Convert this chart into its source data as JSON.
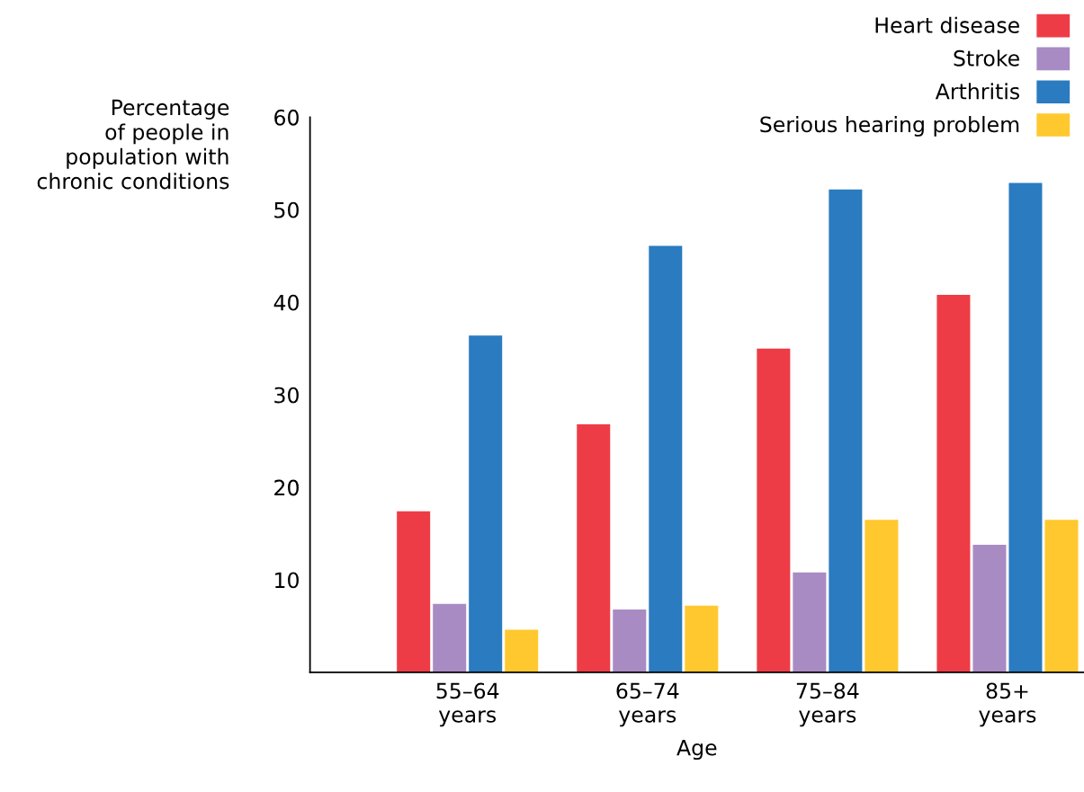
{
  "chart_data": {
    "type": "bar",
    "ylabel": "Percentage\nof people in\npopulation with\nchronic conditions",
    "xlabel": "Age",
    "categories": [
      "55–64\nyears",
      "65–74\nyears",
      "75–84\nyears",
      "85+\nyears"
    ],
    "series": [
      {
        "name": "Heart disease",
        "color": "#ee3c46",
        "values": [
          17.4,
          26.8,
          35.0,
          40.8
        ]
      },
      {
        "name": "Stroke",
        "color": "#a98bc4",
        "values": [
          7.4,
          6.8,
          10.8,
          13.8
        ]
      },
      {
        "name": "Arthritis",
        "color": "#2a7bc0",
        "values": [
          36.4,
          46.1,
          52.2,
          52.9
        ]
      },
      {
        "name": "Serious hearing problem",
        "color": "#ffc82e",
        "values": [
          4.6,
          7.2,
          16.5,
          16.5
        ]
      }
    ],
    "ylim": [
      0,
      60
    ],
    "yticks": [
      10,
      20,
      30,
      40,
      50,
      60
    ],
    "grid": false,
    "legend": "top right"
  }
}
